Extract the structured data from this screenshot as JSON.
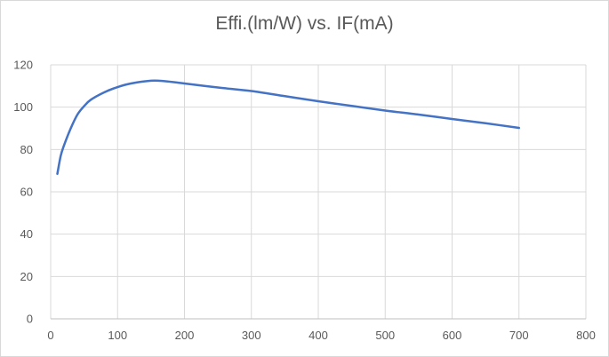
{
  "chart_data": {
    "type": "line",
    "title": "Effi.(lm/W) vs. IF(mA)",
    "xlabel": "",
    "ylabel": "",
    "xlim": [
      0,
      800
    ],
    "ylim": [
      0,
      120
    ],
    "x_ticks": [
      0,
      100,
      200,
      300,
      400,
      500,
      600,
      700,
      800
    ],
    "y_ticks": [
      0,
      20,
      40,
      60,
      80,
      100,
      120
    ],
    "grid": true,
    "legend": "none",
    "series": [
      {
        "color": "#4472c4",
        "x": [
          10,
          15,
          20,
          30,
          40,
          50,
          60,
          80,
          100,
          120,
          150,
          170,
          200,
          250,
          300,
          350,
          400,
          450,
          500,
          550,
          600,
          650,
          700
        ],
        "y": [
          68.5,
          77,
          82,
          90,
          96.5,
          100.5,
          103.5,
          107,
          109.5,
          111.2,
          112.5,
          112.3,
          111.2,
          109.3,
          107.6,
          105.2,
          102.8,
          100.6,
          98.4,
          96.5,
          94.4,
          92.4,
          90.2
        ]
      }
    ]
  }
}
